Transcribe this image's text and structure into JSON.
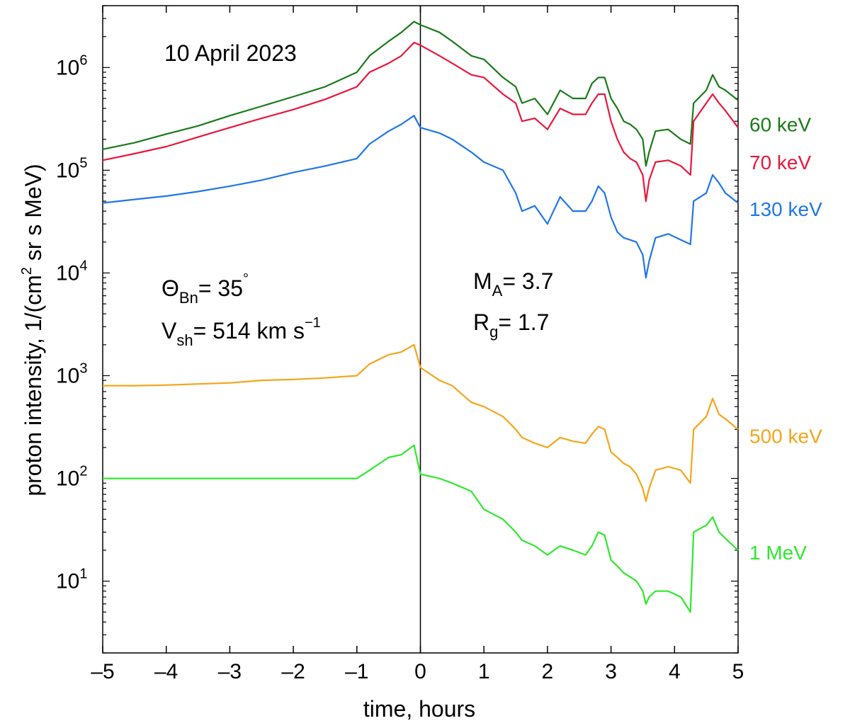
{
  "chart_data": {
    "type": "line",
    "title": "10 April 2023",
    "xlabel": "time, hours",
    "ylabel": "proton intensity, 1/(cm² sr s MeV)",
    "ylabel_parts": {
      "pre": "proton intensity, 1/(cm",
      "sup": "2",
      "post": " sr s MeV)"
    },
    "xlim": [
      -5,
      5
    ],
    "ylim": [
      2,
      4000000
    ],
    "yscale": "log",
    "x_ticks": [
      -5,
      -4,
      -3,
      -2,
      -1,
      0,
      1,
      2,
      3,
      4,
      5
    ],
    "x_tick_labels": [
      "–5",
      "–4",
      "–3",
      "–2",
      "–1",
      "0",
      "1",
      "2",
      "3",
      "4",
      "5"
    ],
    "y_ticks": [
      {
        "value": 10,
        "base": "10",
        "exp": "1"
      },
      {
        "value": 100,
        "base": "10",
        "exp": "2"
      },
      {
        "value": 1000,
        "base": "10",
        "exp": "3"
      },
      {
        "value": 10000,
        "base": "10",
        "exp": "4"
      },
      {
        "value": 100000,
        "base": "10",
        "exp": "5"
      },
      {
        "value": 1000000,
        "base": "10",
        "exp": "6"
      }
    ],
    "vertical_line_x": 0,
    "annotations": {
      "theta_symbol": "Θ",
      "theta_sub": "Bn",
      "theta_value": "= 35",
      "theta_sup": "°",
      "vsh_symbol": "V",
      "vsh_sub": "sh",
      "vsh_value": "= 514 km s",
      "vsh_sup": "−1",
      "ma_symbol": "M",
      "ma_sub": "A",
      "ma_value": "= 3.7",
      "rg_symbol": "R",
      "rg_sub": "g",
      "rg_value": "= 1.7"
    },
    "series": [
      {
        "name": "60 keV",
        "color": "#1a7a1a",
        "label_value": 280000,
        "points": [
          [
            -5,
            160000
          ],
          [
            -4.5,
            185000
          ],
          [
            -4,
            225000
          ],
          [
            -3.5,
            270000
          ],
          [
            -3,
            340000
          ],
          [
            -2.5,
            420000
          ],
          [
            -2,
            520000
          ],
          [
            -1.5,
            650000
          ],
          [
            -1,
            900000
          ],
          [
            -0.8,
            1300000
          ],
          [
            -0.5,
            1800000
          ],
          [
            -0.3,
            2200000
          ],
          [
            -0.1,
            2800000
          ],
          [
            0,
            2600000
          ],
          [
            0.3,
            2200000
          ],
          [
            0.5,
            1800000
          ],
          [
            0.8,
            1300000
          ],
          [
            1,
            1200000
          ],
          [
            1.3,
            800000
          ],
          [
            1.5,
            650000
          ],
          [
            1.6,
            450000
          ],
          [
            1.8,
            500000
          ],
          [
            2,
            350000
          ],
          [
            2.2,
            600000
          ],
          [
            2.4,
            500000
          ],
          [
            2.6,
            500000
          ],
          [
            2.7,
            700000
          ],
          [
            2.8,
            800000
          ],
          [
            2.9,
            800000
          ],
          [
            3,
            500000
          ],
          [
            3.1,
            400000
          ],
          [
            3.2,
            300000
          ],
          [
            3.3,
            280000
          ],
          [
            3.4,
            250000
          ],
          [
            3.5,
            200000
          ],
          [
            3.55,
            110000
          ],
          [
            3.6,
            150000
          ],
          [
            3.7,
            240000
          ],
          [
            3.9,
            250000
          ],
          [
            4.1,
            200000
          ],
          [
            4.25,
            180000
          ],
          [
            4.3,
            450000
          ],
          [
            4.5,
            600000
          ],
          [
            4.6,
            850000
          ],
          [
            4.7,
            650000
          ],
          [
            4.8,
            600000
          ],
          [
            5,
            480000
          ]
        ]
      },
      {
        "name": "70 keV",
        "color": "#e8173c",
        "label_value": 120000,
        "points": [
          [
            -5,
            125000
          ],
          [
            -4.5,
            145000
          ],
          [
            -4,
            170000
          ],
          [
            -3.5,
            210000
          ],
          [
            -3,
            260000
          ],
          [
            -2.5,
            320000
          ],
          [
            -2,
            390000
          ],
          [
            -1.5,
            490000
          ],
          [
            -1,
            650000
          ],
          [
            -0.8,
            900000
          ],
          [
            -0.5,
            1100000
          ],
          [
            -0.3,
            1300000
          ],
          [
            -0.1,
            1750000
          ],
          [
            0,
            1650000
          ],
          [
            0.3,
            1300000
          ],
          [
            0.5,
            1100000
          ],
          [
            0.8,
            850000
          ],
          [
            1,
            800000
          ],
          [
            1.3,
            550000
          ],
          [
            1.5,
            450000
          ],
          [
            1.6,
            300000
          ],
          [
            1.8,
            320000
          ],
          [
            2,
            250000
          ],
          [
            2.2,
            400000
          ],
          [
            2.4,
            350000
          ],
          [
            2.6,
            350000
          ],
          [
            2.7,
            450000
          ],
          [
            2.8,
            550000
          ],
          [
            2.9,
            550000
          ],
          [
            3,
            300000
          ],
          [
            3.1,
            200000
          ],
          [
            3.2,
            150000
          ],
          [
            3.3,
            130000
          ],
          [
            3.4,
            120000
          ],
          [
            3.5,
            90000
          ],
          [
            3.55,
            50000
          ],
          [
            3.6,
            80000
          ],
          [
            3.7,
            120000
          ],
          [
            3.9,
            125000
          ],
          [
            4.1,
            110000
          ],
          [
            4.25,
            90000
          ],
          [
            4.3,
            300000
          ],
          [
            4.5,
            450000
          ],
          [
            4.6,
            550000
          ],
          [
            4.7,
            450000
          ],
          [
            4.8,
            380000
          ],
          [
            5,
            260000
          ]
        ]
      },
      {
        "name": "130 keV",
        "color": "#1f77e8",
        "label_value": 42000,
        "points": [
          [
            -5,
            48000
          ],
          [
            -4.5,
            52000
          ],
          [
            -4,
            56000
          ],
          [
            -3.5,
            62000
          ],
          [
            -3,
            70000
          ],
          [
            -2.5,
            80000
          ],
          [
            -2,
            95000
          ],
          [
            -1.5,
            110000
          ],
          [
            -1,
            130000
          ],
          [
            -0.8,
            180000
          ],
          [
            -0.5,
            240000
          ],
          [
            -0.3,
            280000
          ],
          [
            -0.1,
            340000
          ],
          [
            0,
            260000
          ],
          [
            0.3,
            230000
          ],
          [
            0.5,
            200000
          ],
          [
            0.8,
            150000
          ],
          [
            1,
            120000
          ],
          [
            1.3,
            100000
          ],
          [
            1.5,
            60000
          ],
          [
            1.6,
            40000
          ],
          [
            1.8,
            45000
          ],
          [
            2,
            30000
          ],
          [
            2.2,
            55000
          ],
          [
            2.4,
            40000
          ],
          [
            2.6,
            40000
          ],
          [
            2.7,
            50000
          ],
          [
            2.8,
            70000
          ],
          [
            2.9,
            60000
          ],
          [
            3,
            35000
          ],
          [
            3.1,
            25000
          ],
          [
            3.2,
            22000
          ],
          [
            3.3,
            21000
          ],
          [
            3.4,
            20000
          ],
          [
            3.5,
            15000
          ],
          [
            3.55,
            9000
          ],
          [
            3.6,
            13000
          ],
          [
            3.7,
            22000
          ],
          [
            3.9,
            24000
          ],
          [
            4.1,
            21000
          ],
          [
            4.25,
            19000
          ],
          [
            4.3,
            50000
          ],
          [
            4.5,
            60000
          ],
          [
            4.6,
            90000
          ],
          [
            4.7,
            75000
          ],
          [
            4.8,
            60000
          ],
          [
            5,
            48000
          ]
        ]
      },
      {
        "name": "500 keV",
        "color": "#f5a51a",
        "label_value": 260,
        "points": [
          [
            -5,
            800
          ],
          [
            -4.5,
            800
          ],
          [
            -4,
            810
          ],
          [
            -3.5,
            830
          ],
          [
            -3,
            850
          ],
          [
            -2.5,
            900
          ],
          [
            -2,
            920
          ],
          [
            -1.5,
            950
          ],
          [
            -1,
            1000
          ],
          [
            -0.8,
            1300
          ],
          [
            -0.5,
            1600
          ],
          [
            -0.3,
            1700
          ],
          [
            -0.1,
            2000
          ],
          [
            0,
            1200
          ],
          [
            0.3,
            900
          ],
          [
            0.5,
            800
          ],
          [
            0.8,
            550
          ],
          [
            1,
            500
          ],
          [
            1.3,
            400
          ],
          [
            1.5,
            300
          ],
          [
            1.6,
            250
          ],
          [
            1.8,
            220
          ],
          [
            2,
            200
          ],
          [
            2.2,
            250
          ],
          [
            2.4,
            230
          ],
          [
            2.6,
            220
          ],
          [
            2.7,
            270
          ],
          [
            2.8,
            320
          ],
          [
            2.9,
            300
          ],
          [
            3,
            180
          ],
          [
            3.1,
            160
          ],
          [
            3.2,
            140
          ],
          [
            3.3,
            130
          ],
          [
            3.4,
            110
          ],
          [
            3.5,
            80
          ],
          [
            3.55,
            60
          ],
          [
            3.6,
            80
          ],
          [
            3.7,
            120
          ],
          [
            3.9,
            130
          ],
          [
            4.1,
            120
          ],
          [
            4.25,
            90
          ],
          [
            4.3,
            300
          ],
          [
            4.5,
            400
          ],
          [
            4.6,
            600
          ],
          [
            4.7,
            420
          ],
          [
            4.8,
            380
          ],
          [
            5,
            300
          ]
        ]
      },
      {
        "name": "1 MeV",
        "color": "#2ee82e",
        "label_value": 19,
        "points": [
          [
            -5,
            100
          ],
          [
            -4.5,
            100
          ],
          [
            -4,
            100
          ],
          [
            -3.5,
            100
          ],
          [
            -3,
            100
          ],
          [
            -2.5,
            100
          ],
          [
            -2,
            100
          ],
          [
            -1.5,
            100
          ],
          [
            -1,
            100
          ],
          [
            -0.8,
            120
          ],
          [
            -0.5,
            160
          ],
          [
            -0.3,
            170
          ],
          [
            -0.1,
            210
          ],
          [
            0,
            110
          ],
          [
            0.3,
            100
          ],
          [
            0.5,
            90
          ],
          [
            0.8,
            75
          ],
          [
            1,
            50
          ],
          [
            1.3,
            40
          ],
          [
            1.5,
            30
          ],
          [
            1.6,
            25
          ],
          [
            1.8,
            22
          ],
          [
            2,
            18
          ],
          [
            2.2,
            22
          ],
          [
            2.4,
            20
          ],
          [
            2.6,
            18
          ],
          [
            2.7,
            22
          ],
          [
            2.8,
            30
          ],
          [
            2.9,
            28
          ],
          [
            3,
            16
          ],
          [
            3.1,
            14
          ],
          [
            3.2,
            12
          ],
          [
            3.3,
            11
          ],
          [
            3.4,
            10
          ],
          [
            3.5,
            8
          ],
          [
            3.55,
            6
          ],
          [
            3.6,
            7
          ],
          [
            3.7,
            8
          ],
          [
            3.9,
            8
          ],
          [
            4.1,
            7
          ],
          [
            4.25,
            5
          ],
          [
            4.3,
            30
          ],
          [
            4.5,
            35
          ],
          [
            4.6,
            42
          ],
          [
            4.7,
            30
          ],
          [
            4.8,
            26
          ],
          [
            5,
            20
          ]
        ]
      }
    ]
  }
}
